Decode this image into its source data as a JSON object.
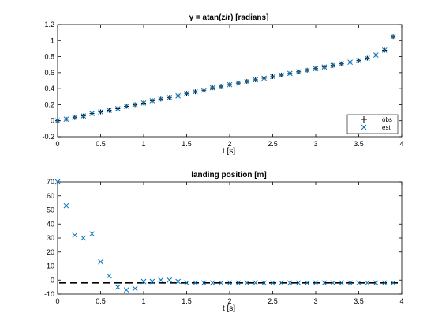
{
  "chart_data": [
    {
      "type": "scatter",
      "title": "y = atan(z/r) [radians]",
      "xlabel": "t [s]",
      "ylabel": "",
      "xlim": [
        0,
        4
      ],
      "ylim": [
        -0.2,
        1.2
      ],
      "xticks": [
        "0",
        "0.5",
        "1",
        "1.5",
        "2",
        "2.5",
        "3",
        "3.5",
        "4"
      ],
      "yticks": [
        "-0.2",
        "0",
        "0.2",
        "0.4",
        "0.6",
        "0.8",
        "1",
        "1.2"
      ],
      "legend": {
        "position": "bottom-right",
        "entries": [
          "obs",
          "est"
        ]
      },
      "colors": {
        "obs": "#000000",
        "est": "#0072bd"
      },
      "series": [
        {
          "name": "obs",
          "marker": "+",
          "x": [
            0,
            0.1,
            0.2,
            0.3,
            0.4,
            0.5,
            0.6,
            0.7,
            0.8,
            0.9,
            1.0,
            1.1,
            1.2,
            1.3,
            1.4,
            1.5,
            1.6,
            1.7,
            1.8,
            1.9,
            2.0,
            2.1,
            2.2,
            2.3,
            2.4,
            2.5,
            2.6,
            2.7,
            2.8,
            2.9,
            3.0,
            3.1,
            3.2,
            3.3,
            3.4,
            3.5,
            3.6,
            3.7,
            3.8,
            3.9
          ],
          "y": [
            0.0,
            0.02,
            0.04,
            0.06,
            0.09,
            0.11,
            0.13,
            0.15,
            0.18,
            0.2,
            0.22,
            0.25,
            0.27,
            0.29,
            0.31,
            0.34,
            0.36,
            0.38,
            0.41,
            0.43,
            0.45,
            0.47,
            0.49,
            0.51,
            0.53,
            0.55,
            0.57,
            0.59,
            0.61,
            0.63,
            0.65,
            0.67,
            0.69,
            0.71,
            0.73,
            0.75,
            0.78,
            0.82,
            0.88,
            1.05
          ]
        },
        {
          "name": "est",
          "marker": "x",
          "x": [
            0,
            0.1,
            0.2,
            0.3,
            0.4,
            0.5,
            0.6,
            0.7,
            0.8,
            0.9,
            1.0,
            1.1,
            1.2,
            1.3,
            1.4,
            1.5,
            1.6,
            1.7,
            1.8,
            1.9,
            2.0,
            2.1,
            2.2,
            2.3,
            2.4,
            2.5,
            2.6,
            2.7,
            2.8,
            2.9,
            3.0,
            3.1,
            3.2,
            3.3,
            3.4,
            3.5,
            3.6,
            3.7,
            3.8,
            3.9
          ],
          "y": [
            0.0,
            0.02,
            0.04,
            0.06,
            0.09,
            0.11,
            0.13,
            0.15,
            0.18,
            0.2,
            0.22,
            0.25,
            0.27,
            0.29,
            0.31,
            0.34,
            0.36,
            0.38,
            0.41,
            0.43,
            0.45,
            0.47,
            0.49,
            0.51,
            0.53,
            0.55,
            0.57,
            0.59,
            0.61,
            0.63,
            0.65,
            0.67,
            0.69,
            0.71,
            0.73,
            0.75,
            0.78,
            0.82,
            0.88,
            1.05
          ]
        }
      ]
    },
    {
      "type": "scatter",
      "title": "landing position [m]",
      "xlabel": "t [s]",
      "ylabel": "",
      "xlim": [
        0,
        4
      ],
      "ylim": [
        -10,
        70
      ],
      "xticks": [
        "0",
        "0.5",
        "1",
        "1.5",
        "2",
        "2.5",
        "3",
        "3.5",
        "4"
      ],
      "yticks": [
        "-10",
        "0",
        "10",
        "20",
        "30",
        "40",
        "50",
        "60",
        "70"
      ],
      "colors": {
        "reference": "#000000",
        "est": "#0072bd"
      },
      "reference_line": {
        "style": "dashed",
        "y": -2
      },
      "series": [
        {
          "marker": "x",
          "x": [
            0,
            0.1,
            0.2,
            0.3,
            0.4,
            0.5,
            0.6,
            0.7,
            0.8,
            0.9,
            1.0,
            1.1,
            1.2,
            1.3,
            1.4,
            1.5,
            1.6,
            1.7,
            1.8,
            1.9,
            2.0,
            2.1,
            2.2,
            2.3,
            2.4,
            2.5,
            2.6,
            2.7,
            2.8,
            2.9,
            3.0,
            3.1,
            3.2,
            3.3,
            3.4,
            3.5,
            3.6,
            3.7,
            3.8,
            3.9
          ],
          "y": [
            70,
            53,
            32,
            30,
            33,
            13,
            3,
            -5,
            -7,
            -6,
            -1,
            -1,
            0,
            0,
            -1,
            -2,
            -2,
            -2,
            -2,
            -2,
            -2,
            -2,
            -2,
            -2,
            -2,
            -2,
            -2,
            -2,
            -2,
            -2,
            -2,
            -2,
            -2,
            -2,
            -2,
            -2,
            -2,
            -2,
            -2,
            -2
          ]
        }
      ]
    }
  ]
}
